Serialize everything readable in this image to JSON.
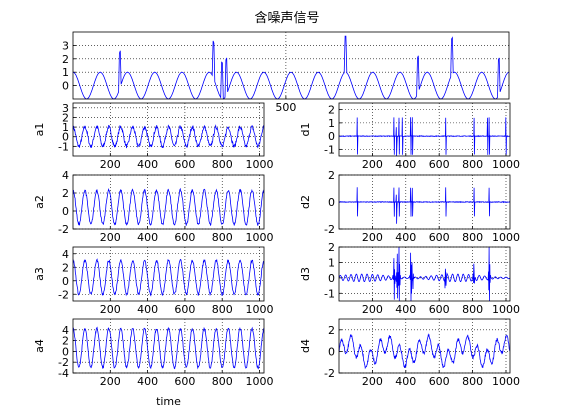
{
  "figure": {
    "title": "含噪声信号"
  },
  "chart_data": [
    {
      "id": "s",
      "type": "line",
      "title": "含噪声信号",
      "xlabel": "",
      "ylabel": "",
      "x_ticks": [
        "500"
      ],
      "y_ticks": [
        "0",
        "1",
        "2",
        "3"
      ],
      "xlim": [
        0,
        1024
      ],
      "ylim": [
        -1,
        4
      ],
      "grid": true,
      "series": [
        {
          "values_summary": "sinusoid amplitude ~1, period ~64 samples, with sparse upward noise spikes reaching ~4 (near x=110, 330, 350, 360, 640, 810, 890, 1000)"
        }
      ],
      "color": "#0000ff"
    },
    {
      "id": "a1",
      "type": "line",
      "ylabel": "a1",
      "xlabel": "",
      "x_ticks": [
        "200",
        "400",
        "600",
        "800",
        "1000"
      ],
      "y_ticks": [
        "-1",
        "0",
        "1",
        "2",
        "3"
      ],
      "xlim": [
        0,
        1024
      ],
      "ylim": [
        -2,
        3.5
      ],
      "grid": true,
      "color": "#0000ff"
    },
    {
      "id": "d1",
      "type": "line",
      "ylabel": "d1",
      "xlabel": "",
      "x_ticks": [
        "200",
        "400",
        "600",
        "800",
        "1000"
      ],
      "y_ticks": [
        "-1",
        "0",
        "1",
        "2"
      ],
      "xlim": [
        0,
        1024
      ],
      "ylim": [
        -1.5,
        2.5
      ],
      "grid": true,
      "color": "#0000ff"
    },
    {
      "id": "a2",
      "type": "line",
      "ylabel": "a2",
      "xlabel": "",
      "x_ticks": [
        "200",
        "400",
        "600",
        "800",
        "1000"
      ],
      "y_ticks": [
        "-2",
        "0",
        "2",
        "4"
      ],
      "xlim": [
        0,
        1024
      ],
      "ylim": [
        -2,
        4
      ],
      "grid": true,
      "color": "#0000ff"
    },
    {
      "id": "d2",
      "type": "line",
      "ylabel": "d2",
      "xlabel": "",
      "x_ticks": [
        "200",
        "400",
        "600",
        "800",
        "1000"
      ],
      "y_ticks": [
        "-2",
        "0",
        "2"
      ],
      "xlim": [
        0,
        1024
      ],
      "ylim": [
        -2,
        2
      ],
      "grid": true,
      "color": "#0000ff"
    },
    {
      "id": "a3",
      "type": "line",
      "ylabel": "a3",
      "xlabel": "",
      "x_ticks": [
        "200",
        "400",
        "600",
        "800",
        "1000"
      ],
      "y_ticks": [
        "-2",
        "0",
        "2",
        "4"
      ],
      "xlim": [
        0,
        1024
      ],
      "ylim": [
        -3,
        5
      ],
      "grid": true,
      "color": "#0000ff"
    },
    {
      "id": "d3",
      "type": "line",
      "ylabel": "d3",
      "xlabel": "",
      "x_ticks": [
        "200",
        "400",
        "600",
        "800",
        "1000"
      ],
      "y_ticks": [
        "-1",
        "0",
        "1",
        "2"
      ],
      "xlim": [
        0,
        1024
      ],
      "ylim": [
        -1.5,
        2
      ],
      "grid": true,
      "color": "#0000ff"
    },
    {
      "id": "a4",
      "type": "line",
      "ylabel": "a4",
      "xlabel": "time",
      "x_ticks": [
        "200",
        "400",
        "600",
        "800",
        "1000"
      ],
      "y_ticks": [
        "-4",
        "-2",
        "0",
        "2",
        "4"
      ],
      "xlim": [
        0,
        1024
      ],
      "ylim": [
        -4,
        6
      ],
      "grid": true,
      "color": "#0000ff"
    },
    {
      "id": "d4",
      "type": "line",
      "ylabel": "d4",
      "xlabel": "",
      "x_ticks": [
        "200",
        "400",
        "600",
        "800",
        "1000"
      ],
      "y_ticks": [
        "-2",
        "0",
        "2"
      ],
      "xlim": [
        0,
        1024
      ],
      "ylim": [
        -2,
        3
      ],
      "grid": true,
      "color": "#0000ff"
    }
  ]
}
